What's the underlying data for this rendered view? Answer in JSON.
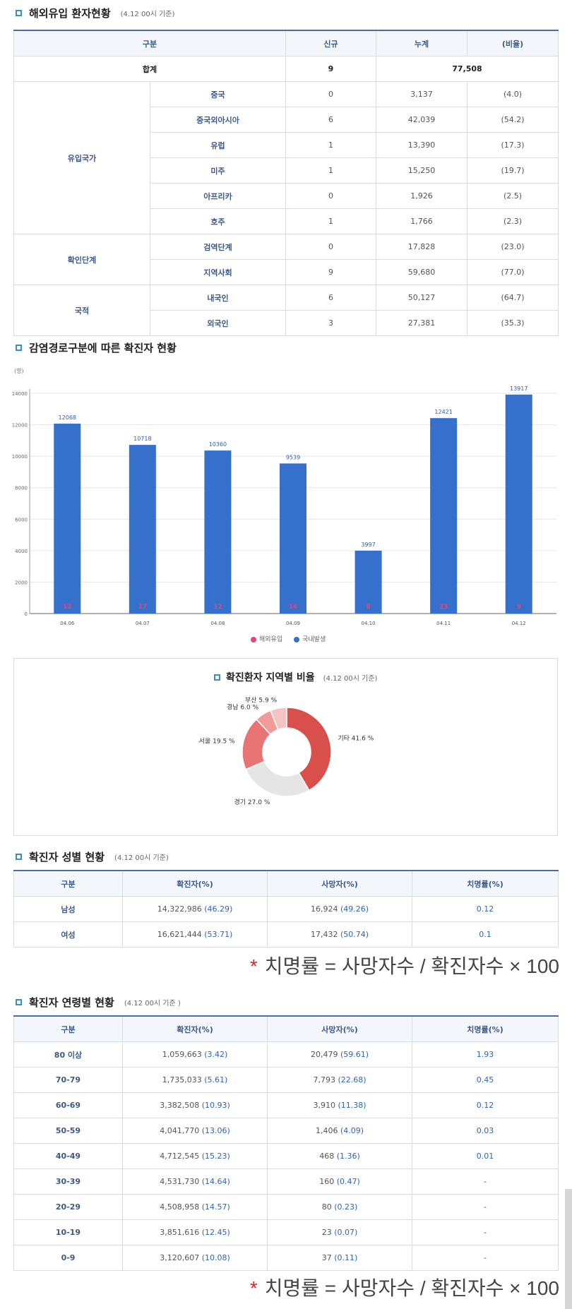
{
  "section1": {
    "title": "해외유입 환자현황",
    "sub": "(4.12 00시 기준)",
    "headers": [
      "구분",
      "신규",
      "누계",
      "(비율)"
    ],
    "total": {
      "label": "합계",
      "new": "9",
      "cum": "77,508"
    },
    "groups": [
      {
        "group": "유입국가",
        "rows": [
          {
            "label": "중국",
            "new": "0",
            "cum": "3,137",
            "ratio": "(4.0)"
          },
          {
            "label": "중국외아시아",
            "new": "6",
            "cum": "42,039",
            "ratio": "(54.2)"
          },
          {
            "label": "유럽",
            "new": "1",
            "cum": "13,390",
            "ratio": "(17.3)"
          },
          {
            "label": "미주",
            "new": "1",
            "cum": "15,250",
            "ratio": "(19.7)"
          },
          {
            "label": "아프리카",
            "new": "0",
            "cum": "1,926",
            "ratio": "(2.5)"
          },
          {
            "label": "호주",
            "new": "1",
            "cum": "1,766",
            "ratio": "(2.3)"
          }
        ]
      },
      {
        "group": "확인단계",
        "rows": [
          {
            "label": "검역단계",
            "new": "0",
            "cum": "17,828",
            "ratio": "(23.0)"
          },
          {
            "label": "지역사회",
            "new": "9",
            "cum": "59,680",
            "ratio": "(77.0)"
          }
        ]
      },
      {
        "group": "국적",
        "rows": [
          {
            "label": "내국인",
            "new": "6",
            "cum": "50,127",
            "ratio": "(64.7)"
          },
          {
            "label": "외국인",
            "new": "3",
            "cum": "27,381",
            "ratio": "(35.3)"
          }
        ]
      }
    ]
  },
  "section2": {
    "title": "감염경로구분에 따른 확진자 현황"
  },
  "chart_data": [
    {
      "type": "bar",
      "unit": "(명)",
      "categories": [
        "04.06",
        "04.07",
        "04.08",
        "04.09",
        "04.10",
        "04.11",
        "04.12"
      ],
      "series": [
        {
          "name": "해외유입",
          "values": [
            12,
            17,
            12,
            14,
            8,
            23,
            9
          ],
          "color": "#e0457b"
        },
        {
          "name": "국내발생",
          "values": [
            12068,
            10718,
            10360,
            9539,
            3997,
            12421,
            13917
          ],
          "color": "#3570cc"
        }
      ],
      "ylim": [
        0,
        14000
      ],
      "yticks": [
        "0",
        "2000",
        "4000",
        "6000",
        "8000",
        "10000",
        "12000",
        "14000"
      ],
      "grid": true,
      "legend": "bottom"
    },
    {
      "type": "pie",
      "title": "확진환자 지역별 비율",
      "sub": "(4.12 00시 기준)",
      "slices": [
        {
          "label": "기타",
          "value": 41.6,
          "text": "기타 41.6 %",
          "color": "#d94f4b"
        },
        {
          "label": "경기",
          "value": 27.0,
          "text": "경기 27.0 %",
          "color": "#e5e5e5"
        },
        {
          "label": "서울",
          "value": 19.5,
          "text": "서울 19.5 %",
          "color": "#e87574"
        },
        {
          "label": "경남",
          "value": 6.0,
          "text": "경남 6.0 %",
          "color": "#ee9b9a"
        },
        {
          "label": "부산",
          "value": 5.9,
          "text": "부산 5.9 %",
          "color": "#f4c3c2"
        }
      ]
    }
  ],
  "section3": {
    "title": "확진자 성별 현황",
    "sub": "(4.12 00시 기준)",
    "headers": [
      "구분",
      "확진자(%)",
      "사망자(%)",
      "치명률(%)"
    ],
    "rows": [
      {
        "label": "남성",
        "conf": "14,322,986",
        "conf_pct": "(46.29)",
        "death": "16,924",
        "death_pct": "(49.26)",
        "rate": "0.12"
      },
      {
        "label": "여성",
        "conf": "16,621,444",
        "conf_pct": "(53.71)",
        "death": "17,432",
        "death_pct": "(50.74)",
        "rate": "0.1"
      }
    ]
  },
  "formula": {
    "star": "*",
    "text": "치명률 = 사망자수 / 확진자수 × 100"
  },
  "section4": {
    "title": "확진자 연령별 현황",
    "sub": "(4.12 00시 기준 )",
    "headers": [
      "구분",
      "확진자(%)",
      "사망자(%)",
      "치명률(%)"
    ],
    "rows": [
      {
        "label": "80 이상",
        "conf": "1,059,663",
        "conf_pct": "(3.42)",
        "death": "20,479",
        "death_pct": "(59.61)",
        "rate": "1.93"
      },
      {
        "label": "70-79",
        "conf": "1,735,033",
        "conf_pct": "(5.61)",
        "death": "7,793",
        "death_pct": "(22.68)",
        "rate": "0.45"
      },
      {
        "label": "60-69",
        "conf": "3,382,508",
        "conf_pct": "(10.93)",
        "death": "3,910",
        "death_pct": "(11.38)",
        "rate": "0.12"
      },
      {
        "label": "50-59",
        "conf": "4,041,770",
        "conf_pct": "(13.06)",
        "death": "1,406",
        "death_pct": "(4.09)",
        "rate": "0.03"
      },
      {
        "label": "40-49",
        "conf": "4,712,545",
        "conf_pct": "(15.23)",
        "death": "468",
        "death_pct": "(1.36)",
        "rate": "0.01"
      },
      {
        "label": "30-39",
        "conf": "4,531,730",
        "conf_pct": "(14.64)",
        "death": "160",
        "death_pct": "(0.47)",
        "rate": "-"
      },
      {
        "label": "20-29",
        "conf": "4,508,958",
        "conf_pct": "(14.57)",
        "death": "80",
        "death_pct": "(0.23)",
        "rate": "-"
      },
      {
        "label": "10-19",
        "conf": "3,851,616",
        "conf_pct": "(12.45)",
        "death": "23",
        "death_pct": "(0.07)",
        "rate": "-"
      },
      {
        "label": "0-9",
        "conf": "3,120,607",
        "conf_pct": "(10.08)",
        "death": "37",
        "death_pct": "(0.11)",
        "rate": "-"
      }
    ]
  }
}
